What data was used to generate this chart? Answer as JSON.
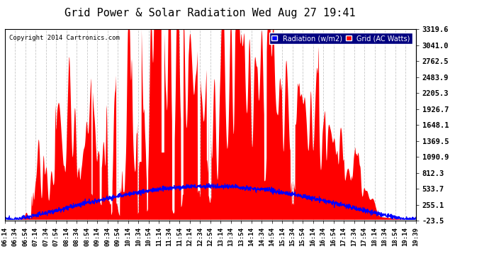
{
  "title": "Grid Power & Solar Radiation Wed Aug 27 19:41",
  "copyright": "Copyright 2014 Cartronics.com",
  "legend_radiation": "Radiation (w/m2)",
  "legend_grid": "Grid (AC Watts)",
  "yticks": [
    3319.6,
    3041.0,
    2762.5,
    2483.9,
    2205.3,
    1926.7,
    1648.1,
    1369.5,
    1090.9,
    812.3,
    533.7,
    255.1,
    -23.5
  ],
  "ymin": -23.5,
  "ymax": 3319.6,
  "bg_color": "#ffffff",
  "plot_bg_color": "#ffffff",
  "grid_color": "#c8c8c8",
  "radiation_color": "#0000ff",
  "grid_power_color": "#ff0000",
  "title_fontsize": 11,
  "xtick_labels": [
    "06:14",
    "06:34",
    "06:54",
    "07:14",
    "07:34",
    "07:54",
    "08:14",
    "08:34",
    "08:54",
    "09:14",
    "09:34",
    "09:54",
    "10:14",
    "10:34",
    "10:54",
    "11:14",
    "11:34",
    "11:54",
    "12:14",
    "12:34",
    "12:54",
    "13:14",
    "13:34",
    "13:54",
    "14:14",
    "14:34",
    "14:54",
    "15:14",
    "15:34",
    "15:54",
    "16:14",
    "16:34",
    "16:54",
    "17:14",
    "17:34",
    "17:54",
    "18:14",
    "18:34",
    "18:54",
    "19:14",
    "19:39"
  ]
}
